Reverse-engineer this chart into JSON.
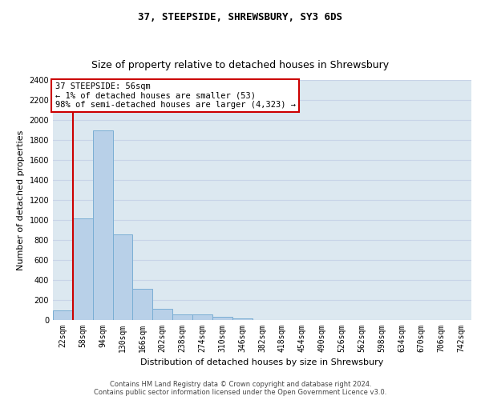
{
  "title": "37, STEEPSIDE, SHREWSBURY, SY3 6DS",
  "subtitle": "Size of property relative to detached houses in Shrewsbury",
  "xlabel": "Distribution of detached houses by size in Shrewsbury",
  "ylabel": "Number of detached properties",
  "categories": [
    "22sqm",
    "58sqm",
    "94sqm",
    "130sqm",
    "166sqm",
    "202sqm",
    "238sqm",
    "274sqm",
    "310sqm",
    "346sqm",
    "382sqm",
    "418sqm",
    "454sqm",
    "490sqm",
    "526sqm",
    "562sqm",
    "598sqm",
    "634sqm",
    "670sqm",
    "706sqm",
    "742sqm"
  ],
  "bar_values": [
    95,
    1015,
    1895,
    860,
    315,
    115,
    60,
    55,
    30,
    20,
    0,
    0,
    0,
    0,
    0,
    0,
    0,
    0,
    0,
    0,
    0
  ],
  "bar_color": "#b8d0e8",
  "bar_edge_color": "#7aaed4",
  "vline_x": 0.5,
  "annotation_text_line1": "37 STEEPSIDE: 56sqm",
  "annotation_text_line2": "← 1% of detached houses are smaller (53)",
  "annotation_text_line3": "98% of semi-detached houses are larger (4,323) →",
  "annotation_box_facecolor": "#ffffff",
  "annotation_box_edgecolor": "#cc0000",
  "vline_color": "#cc0000",
  "ylim": [
    0,
    2400
  ],
  "yticks": [
    0,
    200,
    400,
    600,
    800,
    1000,
    1200,
    1400,
    1600,
    1800,
    2000,
    2200,
    2400
  ],
  "footer_line1": "Contains HM Land Registry data © Crown copyright and database right 2024.",
  "footer_line2": "Contains public sector information licensed under the Open Government Licence v3.0.",
  "grid_color": "#c8d4e8",
  "bg_color": "#dce8f0",
  "fig_bg": "#ffffff",
  "title_fontsize": 9,
  "main_title_fontsize": 9,
  "ylabel_fontsize": 8,
  "xlabel_fontsize": 8,
  "tick_fontsize": 7,
  "annotation_fontsize": 7.5,
  "footer_fontsize": 6
}
